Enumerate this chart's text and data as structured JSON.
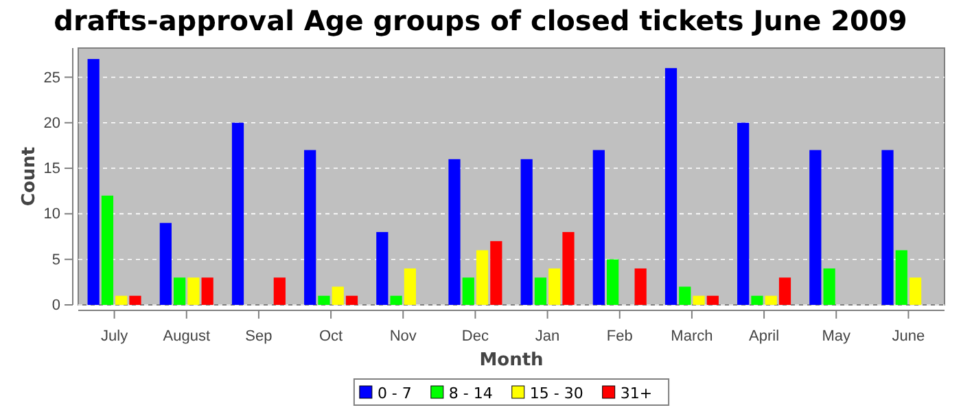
{
  "chart_data": {
    "type": "bar",
    "title": "drafts-approval Age groups of closed tickets June 2009",
    "xlabel": "Month",
    "ylabel": "Count",
    "categories": [
      "July",
      "August",
      "Sep",
      "Oct",
      "Nov",
      "Dec",
      "Jan",
      "Feb",
      "March",
      "April",
      "May",
      "June"
    ],
    "series": [
      {
        "name": "0 - 7",
        "color": "#0000ff",
        "values": [
          27,
          9,
          20,
          17,
          8,
          16,
          16,
          17,
          26,
          20,
          17,
          17
        ]
      },
      {
        "name": "8 - 14",
        "color": "#00ff00",
        "values": [
          12,
          3,
          0,
          1,
          1,
          3,
          3,
          5,
          2,
          1,
          4,
          6
        ]
      },
      {
        "name": "15 - 30",
        "color": "#ffff00",
        "values": [
          1,
          3,
          0,
          2,
          4,
          6,
          4,
          0,
          1,
          1,
          0,
          3
        ]
      },
      {
        "name": "31+",
        "color": "#ff0000",
        "values": [
          1,
          3,
          3,
          1,
          0,
          7,
          8,
          4,
          1,
          3,
          0,
          0
        ]
      }
    ],
    "ylim": [
      0,
      28.2
    ],
    "yticks": [
      0,
      5,
      10,
      15,
      20,
      25
    ],
    "grid": "y",
    "legend": "bottom"
  }
}
